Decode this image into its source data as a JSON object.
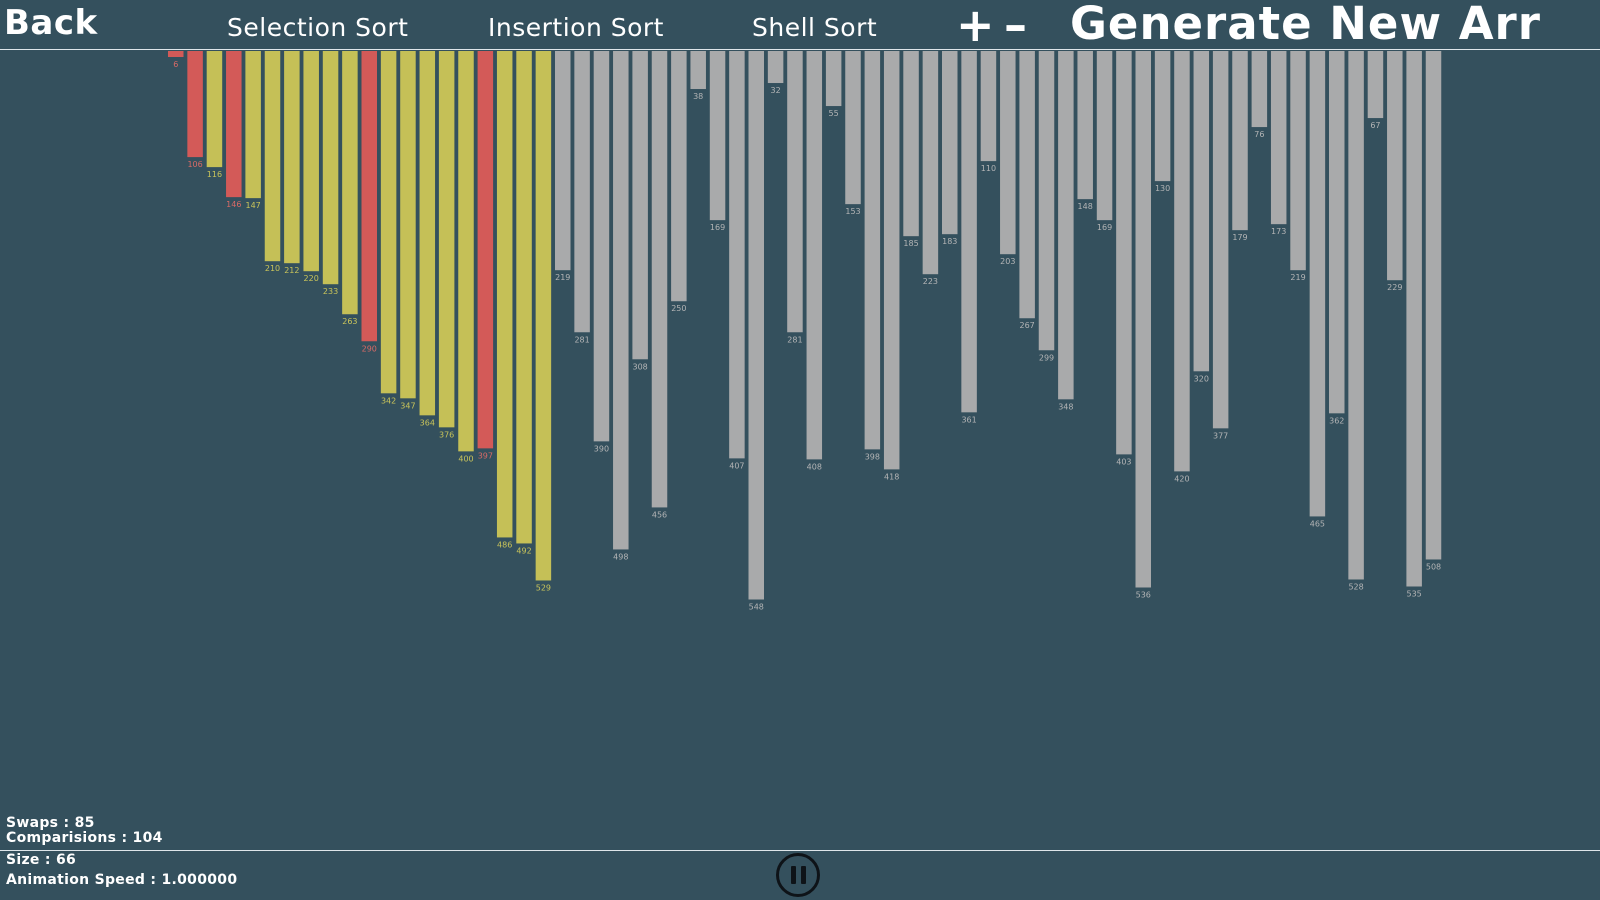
{
  "nav": {
    "back": "Back",
    "selection_sort": "Selection Sort",
    "insertion_sort": "Insertion Sort",
    "shell_sort": "Shell Sort",
    "plus": "+",
    "minus": "–",
    "generate": "Generate New Arr"
  },
  "stats": {
    "swaps": "Swaps : 85",
    "comparisons": "Comparisions : 104",
    "size": "Size : 66",
    "animation_speed": "Animation Speed : 1.000000"
  },
  "colors": {
    "background": "#34505d",
    "sorted": "#c5c057",
    "active": "#d35a58",
    "unsorted": "#a9aaab"
  },
  "icons": {
    "pause": "pause-icon"
  },
  "chart_data": {
    "type": "bar",
    "orientation": "hanging",
    "values": [
      6,
      106,
      116,
      146,
      147,
      210,
      212,
      220,
      233,
      263,
      290,
      342,
      347,
      364,
      376,
      400,
      397,
      486,
      492,
      529,
      219,
      281,
      390,
      498,
      308,
      456,
      250,
      38,
      169,
      407,
      548,
      32,
      281,
      408,
      55,
      153,
      398,
      418,
      185,
      223,
      183,
      361,
      110,
      203,
      267,
      299,
      348,
      148,
      169,
      403,
      536,
      130,
      420,
      320,
      377,
      179,
      76,
      173,
      219,
      465,
      362,
      528,
      67,
      229,
      535,
      508
    ],
    "labels": [
      "6",
      "106",
      "116",
      "146",
      "147",
      "210",
      "212",
      "220",
      "233",
      "263",
      "290",
      "342",
      "347",
      "364",
      "376",
      "400",
      "397",
      "486",
      "492",
      "529",
      "219",
      "281",
      "390",
      "498",
      "308",
      "456",
      "250",
      "38",
      "169",
      "407",
      "548",
      "32",
      "281",
      "408",
      "55",
      "153",
      "398",
      "418",
      "185",
      "223",
      "183",
      "361",
      "110",
      "203",
      "267",
      "299",
      "348",
      "148",
      "169",
      "403",
      "536",
      "130",
      "420",
      "320",
      "377",
      "179",
      "76",
      "173",
      "219",
      "465",
      "362",
      "528",
      "67",
      "229",
      "535",
      "508"
    ],
    "states": [
      "active",
      "active",
      "sorted",
      "active",
      "sorted",
      "sorted",
      "sorted",
      "sorted",
      "sorted",
      "sorted",
      "active",
      "sorted",
      "sorted",
      "sorted",
      "sorted",
      "sorted",
      "active",
      "sorted",
      "sorted",
      "sorted",
      "unsorted",
      "unsorted",
      "unsorted",
      "unsorted",
      "unsorted",
      "unsorted",
      "unsorted",
      "unsorted",
      "unsorted",
      "unsorted",
      "unsorted",
      "unsorted",
      "unsorted",
      "unsorted",
      "unsorted",
      "unsorted",
      "unsorted",
      "unsorted",
      "unsorted",
      "unsorted",
      "unsorted",
      "unsorted",
      "unsorted",
      "unsorted",
      "unsorted",
      "unsorted",
      "unsorted",
      "unsorted",
      "unsorted",
      "unsorted",
      "unsorted",
      "unsorted",
      "unsorted",
      "unsorted",
      "unsorted",
      "unsorted",
      "unsorted",
      "unsorted",
      "unsorted",
      "unsorted",
      "unsorted",
      "unsorted",
      "unsorted",
      "unsorted",
      "unsorted",
      "unsorted"
    ]
  }
}
